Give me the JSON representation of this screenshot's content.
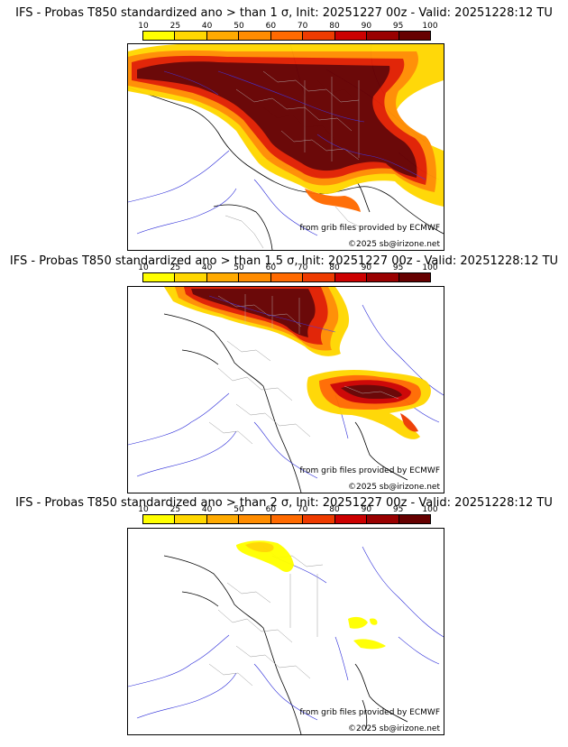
{
  "panels": [
    {
      "title": "IFS - Probas T850  standardized ano > than 1 σ, Init: 20251227 00z - Valid: 20251228:12 TU",
      "source_credit": "from grib files provided by ECMWF",
      "copyright": "©2025 sb@irizone.net"
    },
    {
      "title": "IFS - Probas T850  standardized ano > than 1.5 σ, Init: 20251227 00z - Valid: 20251228:12 TU",
      "source_credit": "from grib files provided by ECMWF",
      "copyright": "©2025 sb@irizone.net"
    },
    {
      "title": "IFS - Probas T850  standardized ano > than 2 σ, Init: 20251227 00z - Valid: 20251228:12 TU",
      "source_credit": "from grib files provided by ECMWF",
      "copyright": "©2025 sb@irizone.net"
    }
  ],
  "colorbar": {
    "ticks": [
      "10",
      "25",
      "40",
      "50",
      "60",
      "70",
      "80",
      "90",
      "95",
      "100"
    ],
    "colors": [
      "#ffff00",
      "#ffd700",
      "#ffaa00",
      "#ff8c00",
      "#ff6a00",
      "#ee3b00",
      "#cc0000",
      "#990000",
      "#660000"
    ]
  }
}
